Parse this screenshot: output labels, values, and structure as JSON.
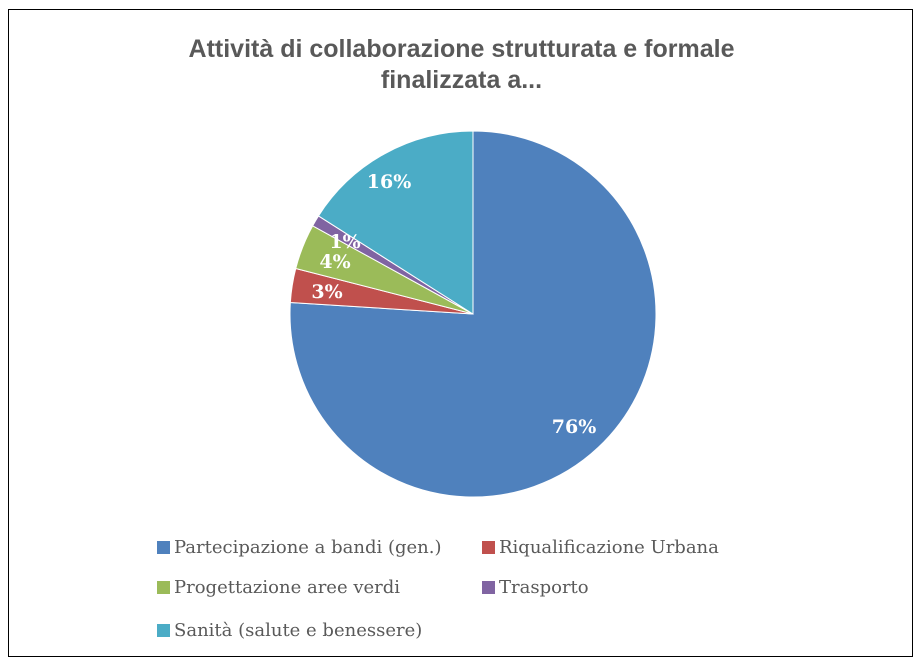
{
  "chart_data": {
    "type": "pie",
    "title": "Attività di collaborazione strutturata e formale finalizzata a...",
    "title_lines": [
      "Attività di collaborazione strutturata e formale",
      "finalizzata a..."
    ],
    "slices": [
      {
        "name": "Partecipazione a bandi (gen.)",
        "value": 76,
        "label": "76%",
        "color": "#4F81BD"
      },
      {
        "name": "Riqualificazione Urbana",
        "value": 3,
        "label": "3%",
        "color": "#C0504D"
      },
      {
        "name": "Progettazione aree verdi",
        "value": 4,
        "label": "4%",
        "color": "#9BBB59"
      },
      {
        "name": "Trasporto",
        "value": 1,
        "label": "1%",
        "color": "#8064A2"
      },
      {
        "name": "Sanità (salute e benessere)",
        "value": 16,
        "label": "16%",
        "color": "#4BACC6"
      }
    ],
    "start_angle_deg": 0,
    "direction": "clockwise",
    "legend_position": "bottom"
  }
}
